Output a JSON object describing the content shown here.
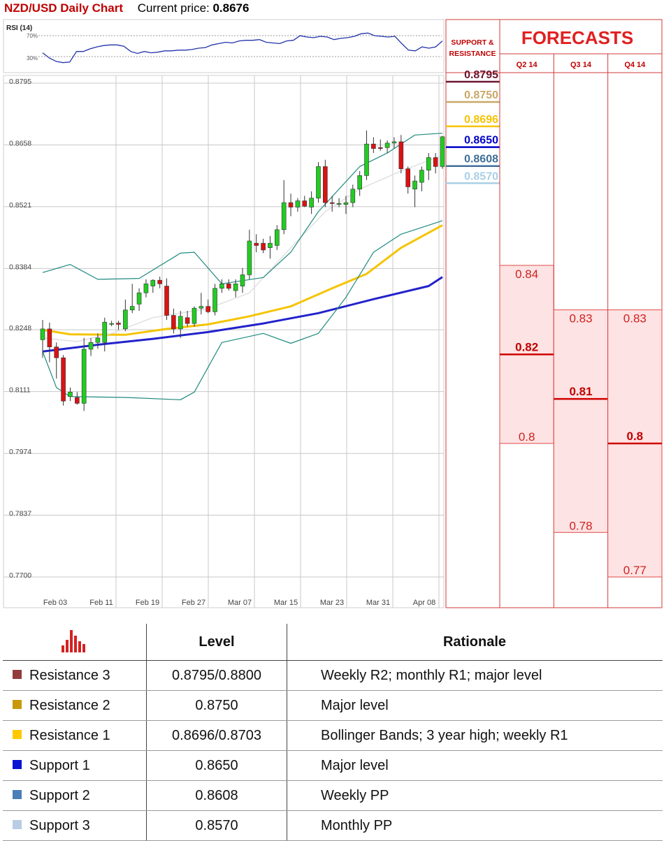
{
  "header": {
    "title": "NZD/USD Daily Chart",
    "price_label": "Current price: ",
    "price_value": "0.8676"
  },
  "chart_data": [
    {
      "type": "candlestick",
      "title": "NZD/USD Daily Chart",
      "ylim": [
        0.77,
        0.8795
      ],
      "y_ticks": [
        "0.8795",
        "0.8658",
        "0.8521",
        "0.8384",
        "0.8248",
        "0.8111",
        "0.7974",
        "0.7837",
        "0.7700"
      ],
      "x_ticks": [
        "Feb 03",
        "Feb 11",
        "Feb 19",
        "Feb 27",
        "Mar 07",
        "Mar 15",
        "Mar 23",
        "Mar 31",
        "Apr 08"
      ],
      "grid": true,
      "candles": [
        {
          "o": 0.8226,
          "h": 0.827,
          "l": 0.8186,
          "c": 0.825
        },
        {
          "o": 0.825,
          "h": 0.8264,
          "l": 0.8176,
          "c": 0.821
        },
        {
          "o": 0.821,
          "h": 0.822,
          "l": 0.814,
          "c": 0.8186
        },
        {
          "o": 0.8186,
          "h": 0.8192,
          "l": 0.808,
          "c": 0.809
        },
        {
          "o": 0.81,
          "h": 0.812,
          "l": 0.809,
          "c": 0.811
        },
        {
          "o": 0.8098,
          "h": 0.811,
          "l": 0.8082,
          "c": 0.8085
        },
        {
          "o": 0.8085,
          "h": 0.823,
          "l": 0.8068,
          "c": 0.8205
        },
        {
          "o": 0.8205,
          "h": 0.823,
          "l": 0.819,
          "c": 0.822
        },
        {
          "o": 0.822,
          "h": 0.824,
          "l": 0.8206,
          "c": 0.823
        },
        {
          "o": 0.822,
          "h": 0.8275,
          "l": 0.82,
          "c": 0.8265
        },
        {
          "o": 0.8262,
          "h": 0.8268,
          "l": 0.8256,
          "c": 0.8262
        },
        {
          "o": 0.8263,
          "h": 0.8268,
          "l": 0.8248,
          "c": 0.826
        },
        {
          "o": 0.825,
          "h": 0.8315,
          "l": 0.8245,
          "c": 0.8292
        },
        {
          "o": 0.8292,
          "h": 0.835,
          "l": 0.8285,
          "c": 0.83
        },
        {
          "o": 0.8305,
          "h": 0.834,
          "l": 0.829,
          "c": 0.833
        },
        {
          "o": 0.833,
          "h": 0.836,
          "l": 0.832,
          "c": 0.835
        },
        {
          "o": 0.8345,
          "h": 0.836,
          "l": 0.833,
          "c": 0.8358
        },
        {
          "o": 0.8358,
          "h": 0.8366,
          "l": 0.834,
          "c": 0.835
        },
        {
          "o": 0.8345,
          "h": 0.8362,
          "l": 0.827,
          "c": 0.828
        },
        {
          "o": 0.828,
          "h": 0.8295,
          "l": 0.824,
          "c": 0.825
        },
        {
          "o": 0.825,
          "h": 0.829,
          "l": 0.823,
          "c": 0.8278
        },
        {
          "o": 0.8275,
          "h": 0.829,
          "l": 0.8255,
          "c": 0.8262
        },
        {
          "o": 0.8262,
          "h": 0.83,
          "l": 0.8255,
          "c": 0.8296
        },
        {
          "o": 0.8296,
          "h": 0.833,
          "l": 0.8282,
          "c": 0.83
        },
        {
          "o": 0.83,
          "h": 0.8315,
          "l": 0.8285,
          "c": 0.8288
        },
        {
          "o": 0.8288,
          "h": 0.835,
          "l": 0.828,
          "c": 0.834
        },
        {
          "o": 0.834,
          "h": 0.836,
          "l": 0.833,
          "c": 0.835
        },
        {
          "o": 0.835,
          "h": 0.836,
          "l": 0.8335,
          "c": 0.834
        },
        {
          "o": 0.8335,
          "h": 0.836,
          "l": 0.832,
          "c": 0.835
        },
        {
          "o": 0.8345,
          "h": 0.8385,
          "l": 0.833,
          "c": 0.837
        },
        {
          "o": 0.837,
          "h": 0.847,
          "l": 0.836,
          "c": 0.8445
        },
        {
          "o": 0.844,
          "h": 0.846,
          "l": 0.842,
          "c": 0.8435
        },
        {
          "o": 0.844,
          "h": 0.845,
          "l": 0.8418,
          "c": 0.8425
        },
        {
          "o": 0.843,
          "h": 0.8456,
          "l": 0.8406,
          "c": 0.844
        },
        {
          "o": 0.8435,
          "h": 0.848,
          "l": 0.8425,
          "c": 0.847
        },
        {
          "o": 0.847,
          "h": 0.858,
          "l": 0.846,
          "c": 0.853
        },
        {
          "o": 0.853,
          "h": 0.855,
          "l": 0.85,
          "c": 0.852
        },
        {
          "o": 0.852,
          "h": 0.854,
          "l": 0.851,
          "c": 0.8534
        },
        {
          "o": 0.8534,
          "h": 0.8545,
          "l": 0.852,
          "c": 0.8522
        },
        {
          "o": 0.852,
          "h": 0.8555,
          "l": 0.8505,
          "c": 0.854
        },
        {
          "o": 0.854,
          "h": 0.862,
          "l": 0.853,
          "c": 0.861
        },
        {
          "o": 0.861,
          "h": 0.8625,
          "l": 0.852,
          "c": 0.853
        },
        {
          "o": 0.853,
          "h": 0.8545,
          "l": 0.851,
          "c": 0.8528
        },
        {
          "o": 0.8528,
          "h": 0.854,
          "l": 0.852,
          "c": 0.8528
        },
        {
          "o": 0.8526,
          "h": 0.8545,
          "l": 0.8505,
          "c": 0.853
        },
        {
          "o": 0.853,
          "h": 0.857,
          "l": 0.852,
          "c": 0.856
        },
        {
          "o": 0.856,
          "h": 0.86,
          "l": 0.8545,
          "c": 0.859
        },
        {
          "o": 0.859,
          "h": 0.869,
          "l": 0.858,
          "c": 0.866
        },
        {
          "o": 0.866,
          "h": 0.8675,
          "l": 0.864,
          "c": 0.865
        },
        {
          "o": 0.8652,
          "h": 0.867,
          "l": 0.8645,
          "c": 0.865
        },
        {
          "o": 0.8652,
          "h": 0.8668,
          "l": 0.864,
          "c": 0.8662
        },
        {
          "o": 0.8662,
          "h": 0.8675,
          "l": 0.865,
          "c": 0.8665
        },
        {
          "o": 0.8665,
          "h": 0.868,
          "l": 0.8595,
          "c": 0.8605
        },
        {
          "o": 0.8605,
          "h": 0.861,
          "l": 0.855,
          "c": 0.8565
        },
        {
          "o": 0.856,
          "h": 0.859,
          "l": 0.852,
          "c": 0.8578
        },
        {
          "o": 0.8575,
          "h": 0.861,
          "l": 0.8555,
          "c": 0.8602
        },
        {
          "o": 0.8602,
          "h": 0.864,
          "l": 0.858,
          "c": 0.863
        },
        {
          "o": 0.863,
          "h": 0.864,
          "l": 0.8595,
          "c": 0.861
        },
        {
          "o": 0.861,
          "h": 0.8678,
          "l": 0.8605,
          "c": 0.8676
        }
      ],
      "overlays": [
        {
          "color": "#2222cc",
          "width": 3,
          "values": [
            [
              0.82,
              0
            ],
            [
              0.8215,
              8
            ],
            [
              0.8228,
              16
            ],
            [
              0.8243,
              24
            ],
            [
              0.8262,
              32
            ],
            [
              0.8285,
              40
            ],
            [
              0.8316,
              48
            ],
            [
              0.8345,
              56
            ],
            [
              0.8365,
              58
            ]
          ]
        },
        {
          "color": "#f5c400",
          "width": 3,
          "values": [
            [
              0.8248,
              0
            ],
            [
              0.8238,
              4
            ],
            [
              0.8237,
              12
            ],
            [
              0.825,
              18
            ],
            [
              0.826,
              24
            ],
            [
              0.8278,
              30
            ],
            [
              0.83,
              36
            ],
            [
              0.834,
              42
            ],
            [
              0.8372,
              47
            ],
            [
              0.843,
              52
            ],
            [
              0.848,
              58
            ]
          ]
        },
        {
          "color": "#e0e0e0",
          "width": 1.5,
          "values": [
            [
              0.823,
              0
            ],
            [
              0.8222,
              5
            ],
            [
              0.824,
              10
            ],
            [
              0.8275,
              16
            ],
            [
              0.8295,
              24
            ],
            [
              0.833,
              30
            ],
            [
              0.843,
              36
            ],
            [
              0.851,
              41
            ],
            [
              0.856,
              46
            ],
            [
              0.86,
              52
            ],
            [
              0.8635,
              58
            ]
          ]
        },
        {
          "color": "#1f8a80",
          "width": 1.2,
          "values": [
            [
              0.8375,
              0
            ],
            [
              0.8393,
              4
            ],
            [
              0.836,
              8
            ],
            [
              0.8362,
              14
            ],
            [
              0.8418,
              20
            ],
            [
              0.842,
              22
            ],
            [
              0.835,
              26
            ],
            [
              0.8364,
              32
            ],
            [
              0.842,
              36
            ],
            [
              0.851,
              40
            ],
            [
              0.861,
              46
            ],
            [
              0.864,
              50
            ],
            [
              0.868,
              54
            ],
            [
              0.8684,
              58
            ]
          ]
        },
        {
          "color": "#1f8a80",
          "width": 1.2,
          "values": [
            [
              0.82,
              0
            ],
            [
              0.812,
              2
            ],
            [
              0.81,
              4
            ],
            [
              0.8098,
              12
            ],
            [
              0.8093,
              20
            ],
            [
              0.811,
              22
            ],
            [
              0.822,
              26
            ],
            [
              0.824,
              32
            ],
            [
              0.8218,
              36
            ],
            [
              0.824,
              40
            ],
            [
              0.832,
              44
            ],
            [
              0.842,
              48
            ],
            [
              0.846,
              52
            ],
            [
              0.848,
              56
            ],
            [
              0.849,
              58
            ]
          ]
        }
      ]
    },
    {
      "type": "line",
      "title": "RSI (14)",
      "y_ticks": [
        "70%",
        "30%"
      ],
      "ylim": [
        20,
        90
      ],
      "values": [
        48,
        40,
        35,
        33,
        34,
        50,
        50,
        54,
        57,
        59,
        60,
        60,
        58,
        50,
        47,
        50,
        48,
        49,
        51,
        51,
        52,
        52,
        53,
        55,
        56,
        60,
        62,
        64,
        63,
        66,
        67,
        67,
        68,
        64,
        63,
        62,
        66,
        67,
        74,
        72,
        71,
        73,
        72,
        68,
        70,
        71,
        73,
        77,
        78,
        74,
        73,
        72,
        73,
        62,
        52,
        51,
        57,
        55,
        57,
        66
      ]
    }
  ],
  "support_resistance": {
    "header_line1": "SUPPORT &",
    "header_line2": "RESISTANCE",
    "levels": [
      {
        "label": "0.8795",
        "value": 0.8795,
        "color": "#6b1530"
      },
      {
        "label": "0.8750",
        "value": 0.875,
        "color": "#c9a868"
      },
      {
        "label": "0.8696",
        "value": 0.8696,
        "color": "#f5c400"
      },
      {
        "label": "0.8650",
        "value": 0.865,
        "color": "#0000c8"
      },
      {
        "label": "0.8608",
        "value": 0.8608,
        "color": "#3f6f98"
      },
      {
        "label": "0.8570",
        "value": 0.857,
        "color": "#a9cfe6"
      }
    ]
  },
  "forecasts": {
    "title": "FORECASTS",
    "columns": [
      {
        "label": "Q2 14",
        "high": "0.84",
        "mid": "0.82",
        "low": "0.8"
      },
      {
        "label": "Q3 14",
        "high": "0.83",
        "mid": "0.81",
        "low": "0.78"
      },
      {
        "label": "Q4 14",
        "high": "0.83",
        "mid": "0.8",
        "low": "0.77"
      }
    ]
  },
  "table": {
    "header_level": "Level",
    "header_rationale": "Rationale",
    "rows": [
      {
        "name": "Resistance 3",
        "color": "#923c3c",
        "level": "0.8795/0.8800",
        "rationale": "Weekly R2; monthly R1; major level"
      },
      {
        "name": "Resistance 2",
        "color": "#c9990c",
        "level": "0.8750",
        "rationale": "Major level"
      },
      {
        "name": "Resistance 1",
        "color": "#ffc800",
        "level": "0.8696/0.8703",
        "rationale": "Bollinger Bands; 3 year high; weekly R1"
      },
      {
        "name": "Support 1",
        "color": "#0a14d2",
        "level": "0.8650",
        "rationale": "Major level"
      },
      {
        "name": "Support 2",
        "color": "#4a7fb8",
        "level": "0.8608",
        "rationale": "Weekly PP"
      },
      {
        "name": "Support 3",
        "color": "#b8cce4",
        "level": "0.8570",
        "rationale": "Monthly PP"
      }
    ]
  }
}
